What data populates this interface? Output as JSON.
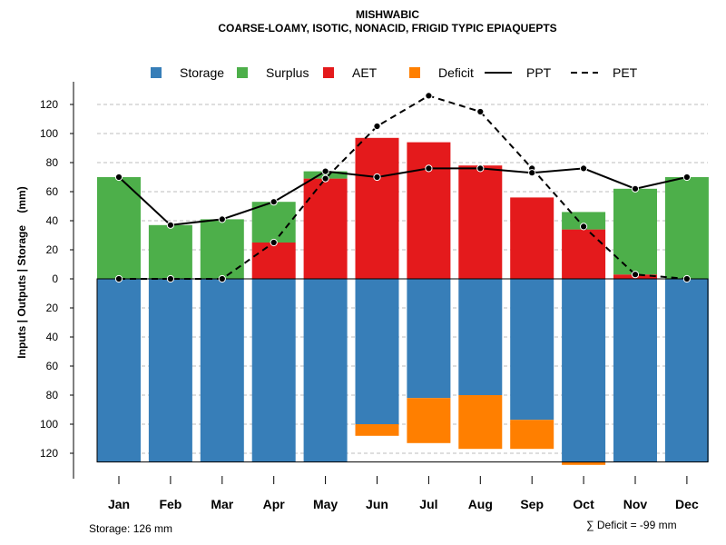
{
  "chart_data": {
    "type": "bar",
    "title": "MISHWABIC",
    "subtitle": "COARSE-LOAMY, ISOTIC, NONACID, FRIGID TYPIC EPIAQUEPTS",
    "ylabel": "Inputs | Outputs | Storage    (mm)",
    "xlabel": "",
    "categories": [
      "Jan",
      "Feb",
      "Mar",
      "Apr",
      "May",
      "Jun",
      "Jul",
      "Aug",
      "Sep",
      "Oct",
      "Nov",
      "Dec"
    ],
    "ylim": [
      -126,
      126
    ],
    "y_ticks": [
      120,
      100,
      80,
      60,
      40,
      20,
      0,
      20,
      40,
      60,
      80,
      100,
      120
    ],
    "y_tick_values": [
      120,
      100,
      80,
      60,
      40,
      20,
      0,
      -20,
      -40,
      -60,
      -80,
      -100,
      -120
    ],
    "grid": true,
    "legend_position": "top",
    "legend": [
      {
        "label": "Storage",
        "kind": "box",
        "color": "#377EB8"
      },
      {
        "label": "Surplus",
        "kind": "box",
        "color": "#4DAF4A"
      },
      {
        "label": "AET",
        "kind": "box",
        "color": "#E41A1C"
      },
      {
        "label": "Deficit",
        "kind": "box",
        "color": "#FF7F00"
      },
      {
        "label": "PPT",
        "kind": "solid-line",
        "color": "#000000"
      },
      {
        "label": "PET",
        "kind": "dashed-line",
        "color": "#000000"
      }
    ],
    "series": [
      {
        "name": "Storage",
        "color": "#377EB8",
        "values": [
          126,
          126,
          126,
          126,
          126,
          100,
          82,
          80,
          97,
          126,
          126,
          126
        ]
      },
      {
        "name": "Surplus",
        "color": "#4DAF4A",
        "values": [
          70,
          37,
          41,
          28,
          5,
          0,
          0,
          0,
          0,
          12,
          59,
          70
        ]
      },
      {
        "name": "AET",
        "color": "#E41A1C",
        "values": [
          0,
          0,
          0,
          25,
          69,
          97,
          94,
          78,
          56,
          34,
          3,
          0
        ]
      },
      {
        "name": "Deficit",
        "color": "#FF7F00",
        "values": [
          0,
          0,
          0,
          0,
          0,
          8,
          31,
          37,
          20,
          2,
          0,
          0
        ]
      },
      {
        "name": "PPT",
        "color": "#000000",
        "values": [
          70,
          37,
          41,
          53,
          74,
          70,
          76,
          76,
          73,
          76,
          62,
          70
        ]
      },
      {
        "name": "PET",
        "color": "#000000",
        "values": [
          0,
          0,
          0,
          25,
          69,
          105,
          126,
          115,
          76,
          36,
          3,
          0
        ]
      }
    ],
    "annotations": {
      "storage_note": "Storage: 126 mm",
      "deficit_note": "∑ Deficit = -99 mm"
    }
  }
}
